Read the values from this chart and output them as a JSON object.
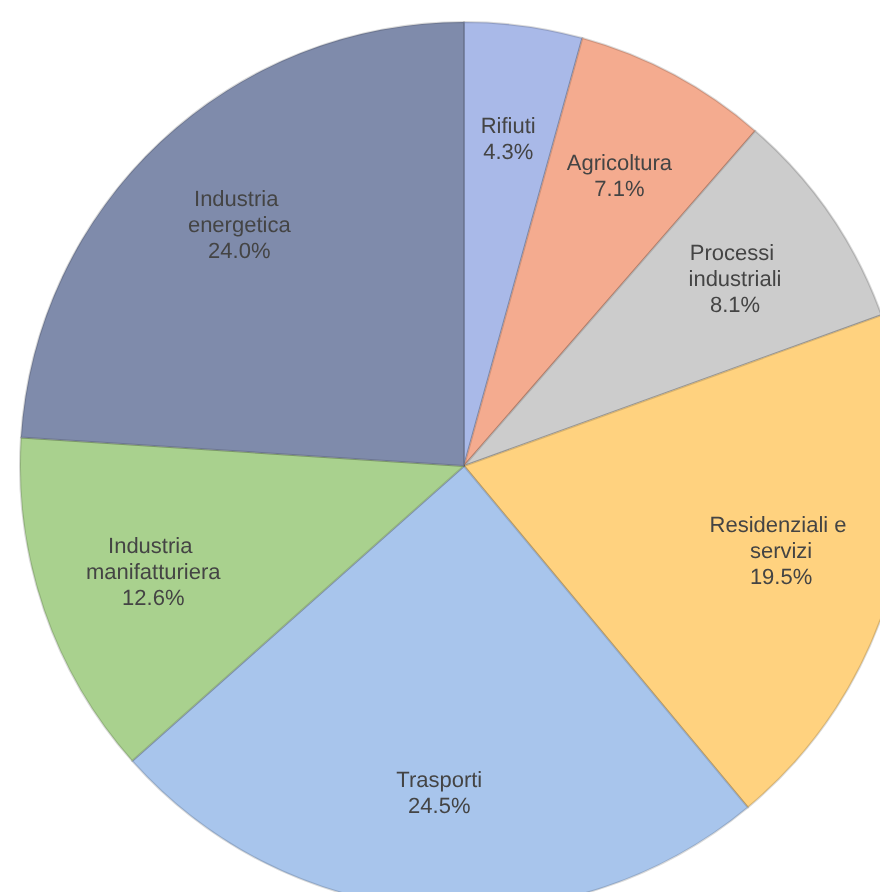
{
  "chart_data": {
    "type": "pie",
    "categories": [
      "Rifiuti",
      "Agricoltura",
      "Processi industriali",
      "Residenziali e servizi",
      "Trasporti",
      "Industria manifatturiera",
      "Industria energetica"
    ],
    "values": [
      4.3,
      7.1,
      8.1,
      19.5,
      24.5,
      12.6,
      24.0
    ],
    "colors": [
      "#a9b9e8",
      "#f4ab8f",
      "#cccccc",
      "#ffd27f",
      "#a8c5ec",
      "#a9d18e",
      "#7f8bab"
    ],
    "value_labels": [
      "4.3%",
      "7.1%",
      "8.1%",
      "19.5%",
      "24.5%",
      "12.6%",
      "24.0%"
    ]
  }
}
